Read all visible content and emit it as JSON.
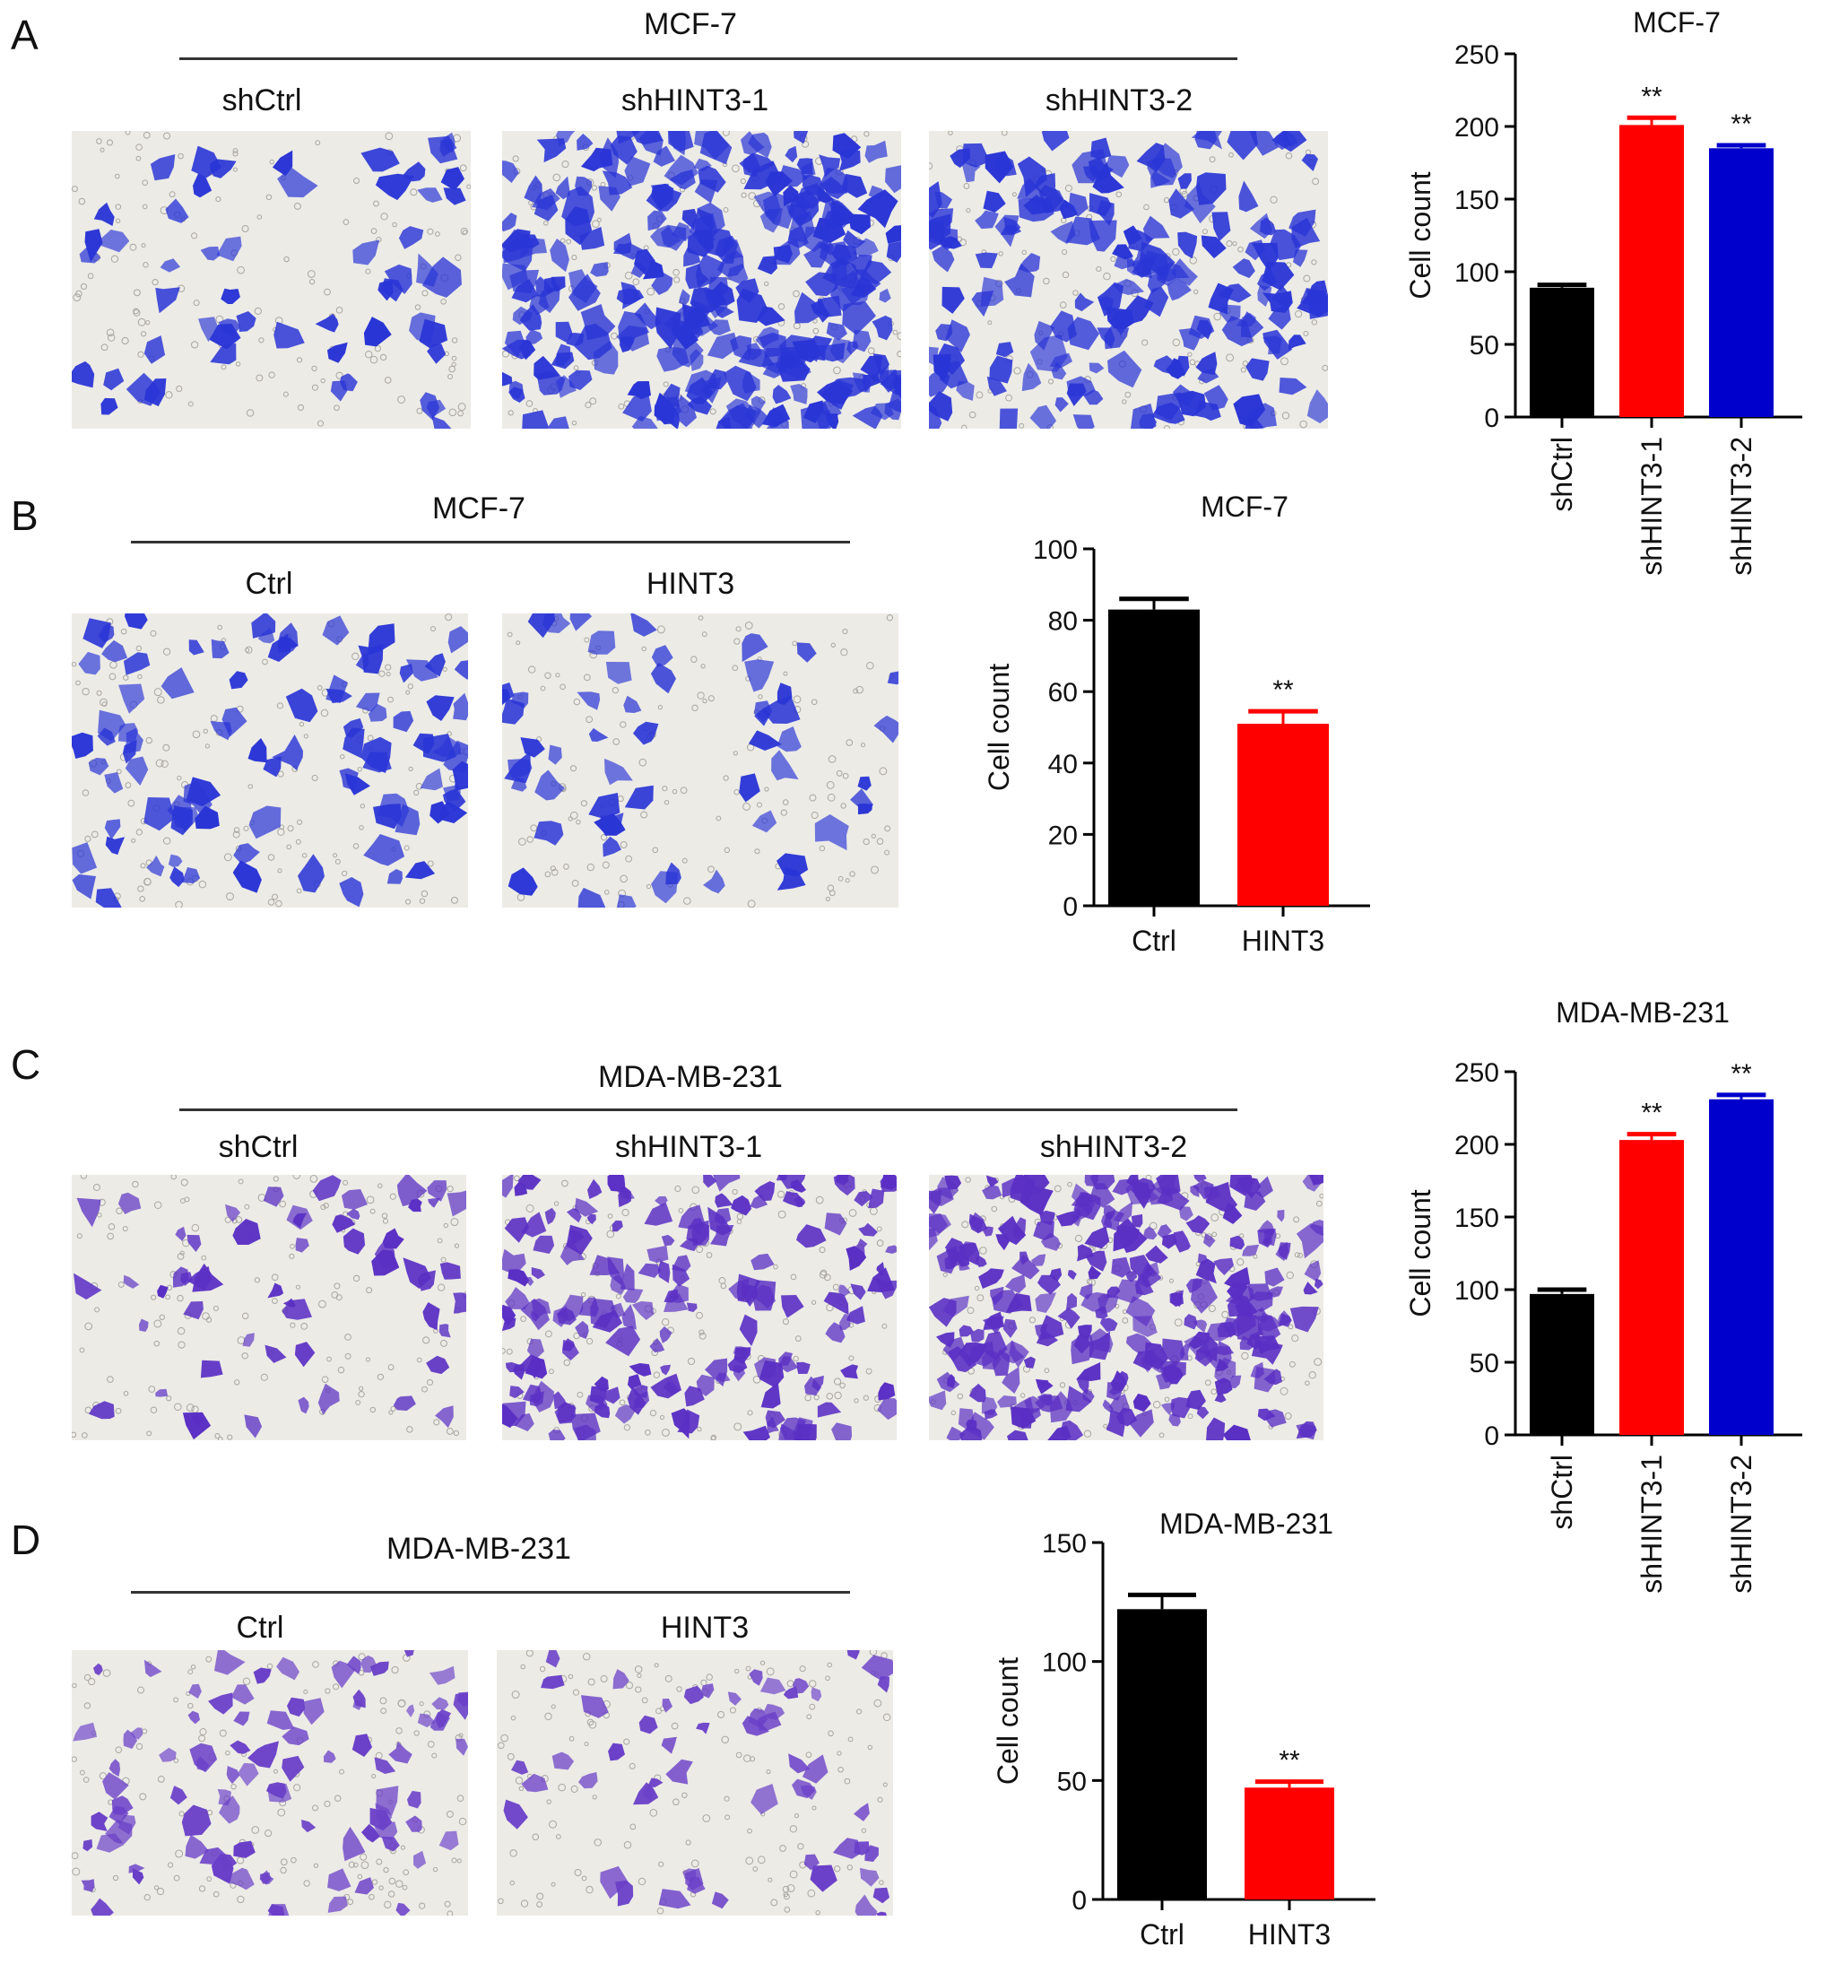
{
  "panels": [
    {
      "letter": "A",
      "cell_line": "MCF-7",
      "conditions": [
        "shCtrl",
        "shHINT3-1",
        "shHINT3-2"
      ],
      "density": [
        "sparse",
        "very-dense",
        "dense"
      ],
      "stain": "#2a35d6"
    },
    {
      "letter": "B",
      "cell_line": "MCF-7",
      "conditions": [
        "Ctrl",
        "HINT3"
      ],
      "density": [
        "medium",
        "sparse"
      ],
      "stain": "#2a35d6"
    },
    {
      "letter": "C",
      "cell_line": "MDA-MB-231",
      "conditions": [
        "shCtrl",
        "shHINT3-1",
        "shHINT3-2"
      ],
      "density": [
        "sparse",
        "dense",
        "very-dense"
      ],
      "stain": "#5a2fc4"
    },
    {
      "letter": "D",
      "cell_line": "MDA-MB-231",
      "conditions": [
        "Ctrl",
        "HINT3"
      ],
      "density": [
        "medium",
        "sparse"
      ],
      "stain": "#6a3fc8"
    }
  ],
  "colors": {
    "black": "#000000",
    "red": "#ff0000",
    "blue": "#0000cc"
  },
  "chart_data": [
    {
      "panel": "A",
      "type": "bar",
      "title": "MCF-7",
      "ylabel": "Cell count",
      "categories": [
        "shCtrl",
        "shHINT3-1",
        "shHINT3-2"
      ],
      "values": [
        89,
        201,
        185
      ],
      "errors": [
        2,
        5,
        2
      ],
      "significance": [
        "",
        "**",
        "**"
      ],
      "bar_colors": [
        "#000000",
        "#ff0000",
        "#0000cc"
      ],
      "ylim": [
        0,
        250
      ],
      "yticks": [
        0,
        50,
        100,
        150,
        200,
        250
      ],
      "rotated_x_labels": true
    },
    {
      "panel": "B",
      "type": "bar",
      "title": "MCF-7",
      "ylabel": "Cell count",
      "categories": [
        "Ctrl",
        "HINT3"
      ],
      "values": [
        83,
        51
      ],
      "errors": [
        3,
        3.5
      ],
      "significance": [
        "",
        "**"
      ],
      "bar_colors": [
        "#000000",
        "#ff0000"
      ],
      "ylim": [
        0,
        100
      ],
      "yticks": [
        0,
        20,
        40,
        60,
        80,
        100
      ],
      "rotated_x_labels": false
    },
    {
      "panel": "C",
      "type": "bar",
      "title": "MDA-MB-231",
      "ylabel": "Cell count",
      "categories": [
        "shCtrl",
        "shHINT3-1",
        "shHINT3-2"
      ],
      "values": [
        97,
        203,
        231
      ],
      "errors": [
        3,
        4,
        3
      ],
      "significance": [
        "",
        "**",
        "**"
      ],
      "bar_colors": [
        "#000000",
        "#ff0000",
        "#0000cc"
      ],
      "ylim": [
        0,
        250
      ],
      "yticks": [
        0,
        50,
        100,
        150,
        200,
        250
      ],
      "rotated_x_labels": true
    },
    {
      "panel": "D",
      "type": "bar",
      "title": "MDA-MB-231",
      "ylabel": "Cell count",
      "categories": [
        "Ctrl",
        "HINT3"
      ],
      "values": [
        122,
        47
      ],
      "errors": [
        6,
        2.5
      ],
      "significance": [
        "",
        "**"
      ],
      "bar_colors": [
        "#000000",
        "#ff0000"
      ],
      "ylim": [
        0,
        150
      ],
      "yticks": [
        0,
        50,
        100,
        150
      ],
      "rotated_x_labels": false
    }
  ]
}
